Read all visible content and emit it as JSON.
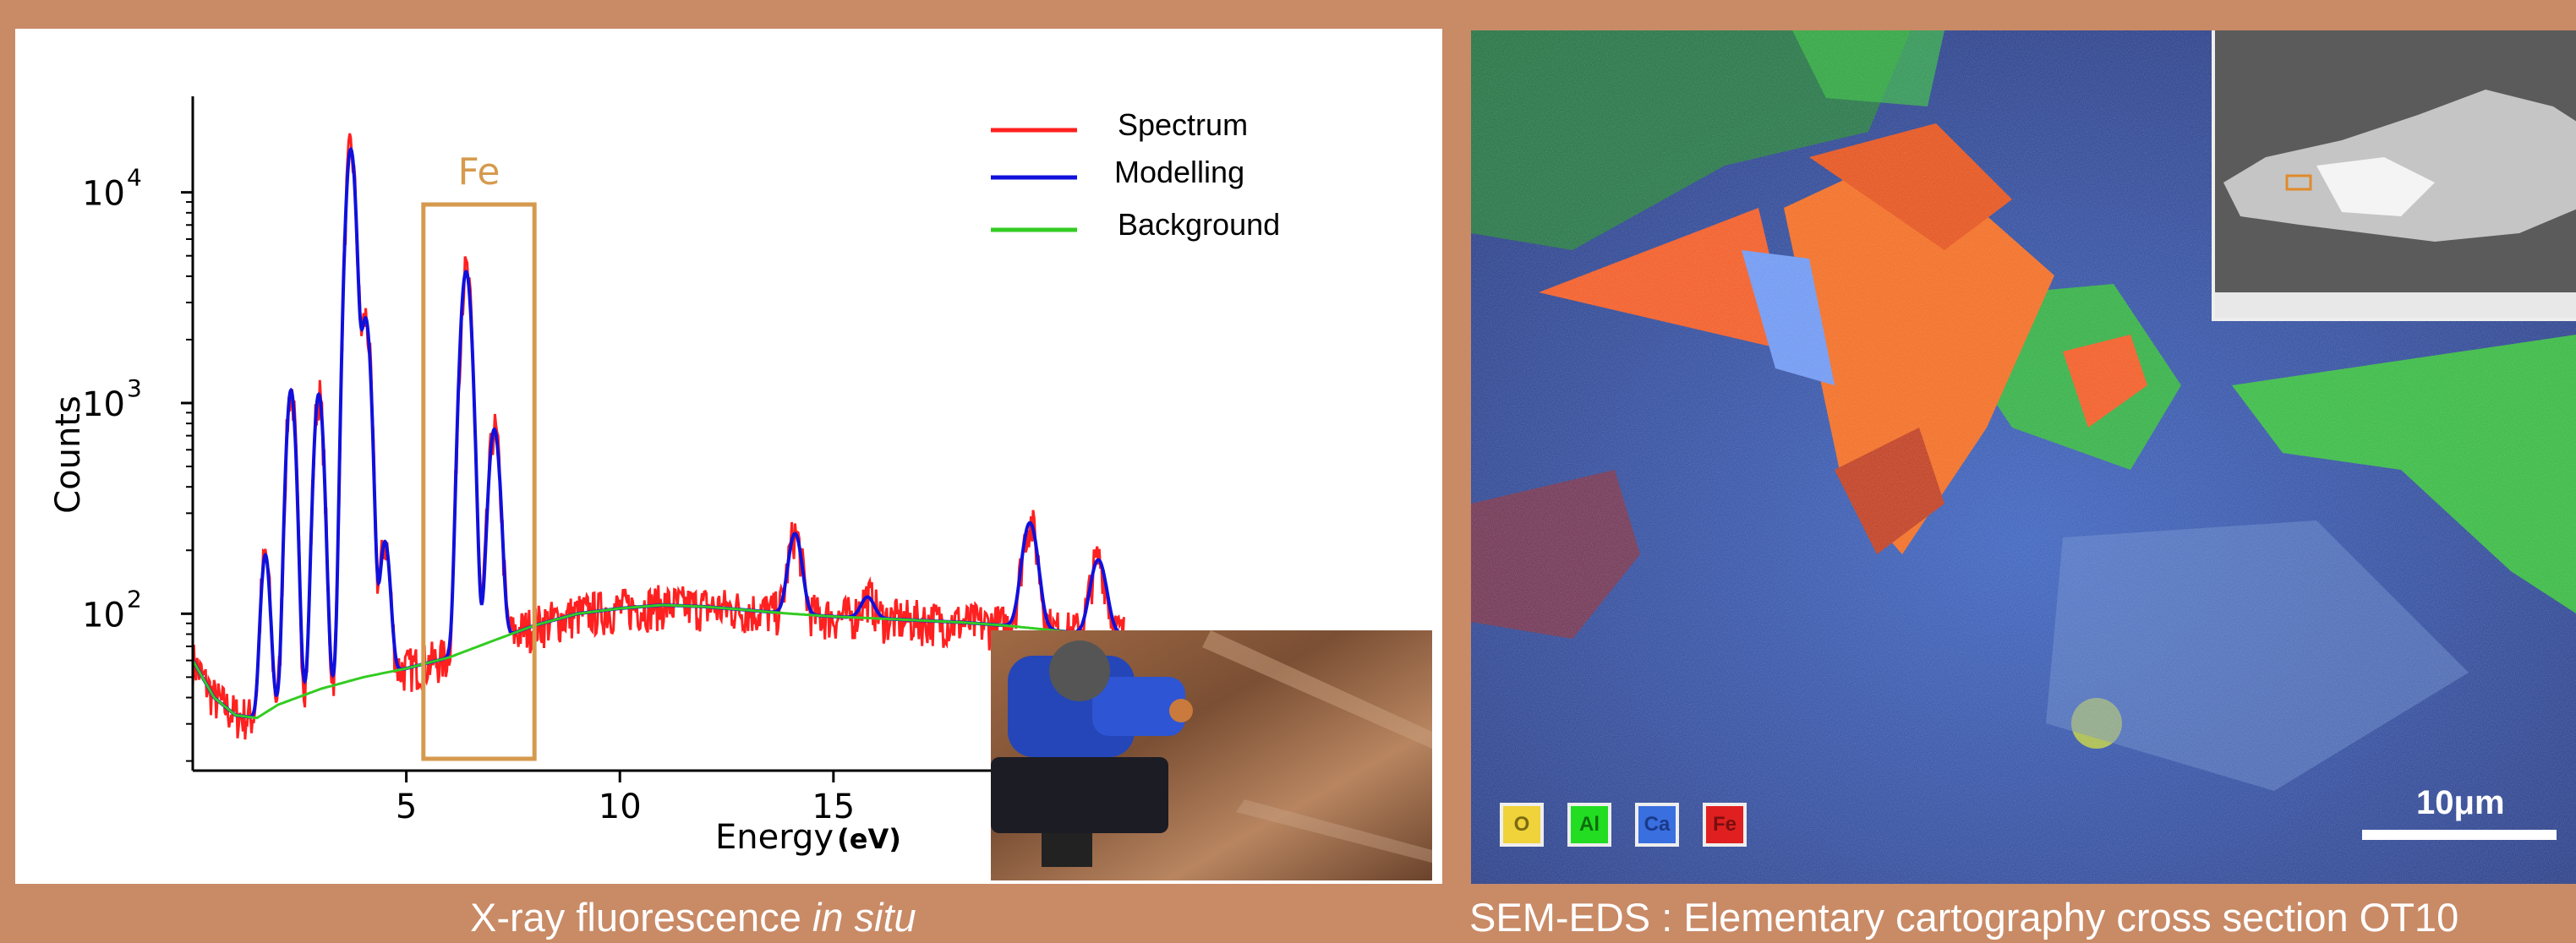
{
  "captions": {
    "left_prefix": "X-ray fluorescence ",
    "left_italic": "in situ",
    "right": "SEM-EDS : Elementary cartography cross section OT10"
  },
  "chart_data": {
    "type": "line",
    "title": "",
    "xlabel": "Energy",
    "xlabel_unit": "(eV)",
    "ylabel": "Counts",
    "yscale": "log",
    "xlim": [
      0,
      23
    ],
    "ylim": [
      18,
      18000
    ],
    "x_ticks": [
      5,
      10,
      15
    ],
    "x_tick_labels": [
      "5",
      "10",
      "15"
    ],
    "y_ticks": [
      100,
      1000,
      10000
    ],
    "y_tick_labels": [
      {
        "base": "10",
        "exp": "2"
      },
      {
        "base": "10",
        "exp": "3"
      },
      {
        "base": "10",
        "exp": "4"
      }
    ],
    "legend_position": "top-right",
    "series": [
      {
        "name": "Spectrum",
        "color": "#ff2020"
      },
      {
        "name": "Modelling",
        "color": "#1010dd"
      },
      {
        "name": "Background",
        "color": "#33cc22"
      }
    ],
    "background_points": [
      [
        0,
        60
      ],
      [
        0.5,
        40
      ],
      [
        1,
        33
      ],
      [
        1.5,
        32
      ],
      [
        2,
        37
      ],
      [
        3,
        44
      ],
      [
        4,
        50
      ],
      [
        5,
        55
      ],
      [
        6,
        62
      ],
      [
        7,
        74
      ],
      [
        8,
        88
      ],
      [
        9,
        100
      ],
      [
        10,
        106
      ],
      [
        11,
        110
      ],
      [
        12,
        108
      ],
      [
        13,
        104
      ],
      [
        14,
        100
      ],
      [
        15,
        97
      ],
      [
        16,
        95
      ],
      [
        17,
        93
      ],
      [
        18,
        91
      ],
      [
        19,
        88
      ],
      [
        20,
        84
      ],
      [
        21,
        80
      ]
    ],
    "peaks": [
      {
        "x": 1.7,
        "y": 190
      },
      {
        "x": 2.3,
        "y": 1150
      },
      {
        "x": 2.95,
        "y": 1100
      },
      {
        "x": 3.7,
        "y": 16000
      },
      {
        "x": 4.05,
        "y": 2500
      },
      {
        "x": 4.5,
        "y": 220
      },
      {
        "x": 6.4,
        "y": 4200
      },
      {
        "x": 7.06,
        "y": 750
      },
      {
        "x": 14.1,
        "y": 240
      },
      {
        "x": 15.8,
        "y": 120
      },
      {
        "x": 19.6,
        "y": 270
      },
      {
        "x": 21.2,
        "y": 180
      }
    ],
    "annotation": {
      "label": "Fe",
      "x_range": [
        5.4,
        8.0
      ],
      "color": "#d69a4e"
    }
  },
  "sem_map": {
    "element_labels": [
      "O",
      "Al",
      "Ca",
      "Fe"
    ],
    "element_colors": [
      "#f0d23a",
      "#22dd22",
      "#3a6fe0",
      "#e02020"
    ],
    "scale_label": "10μm"
  }
}
